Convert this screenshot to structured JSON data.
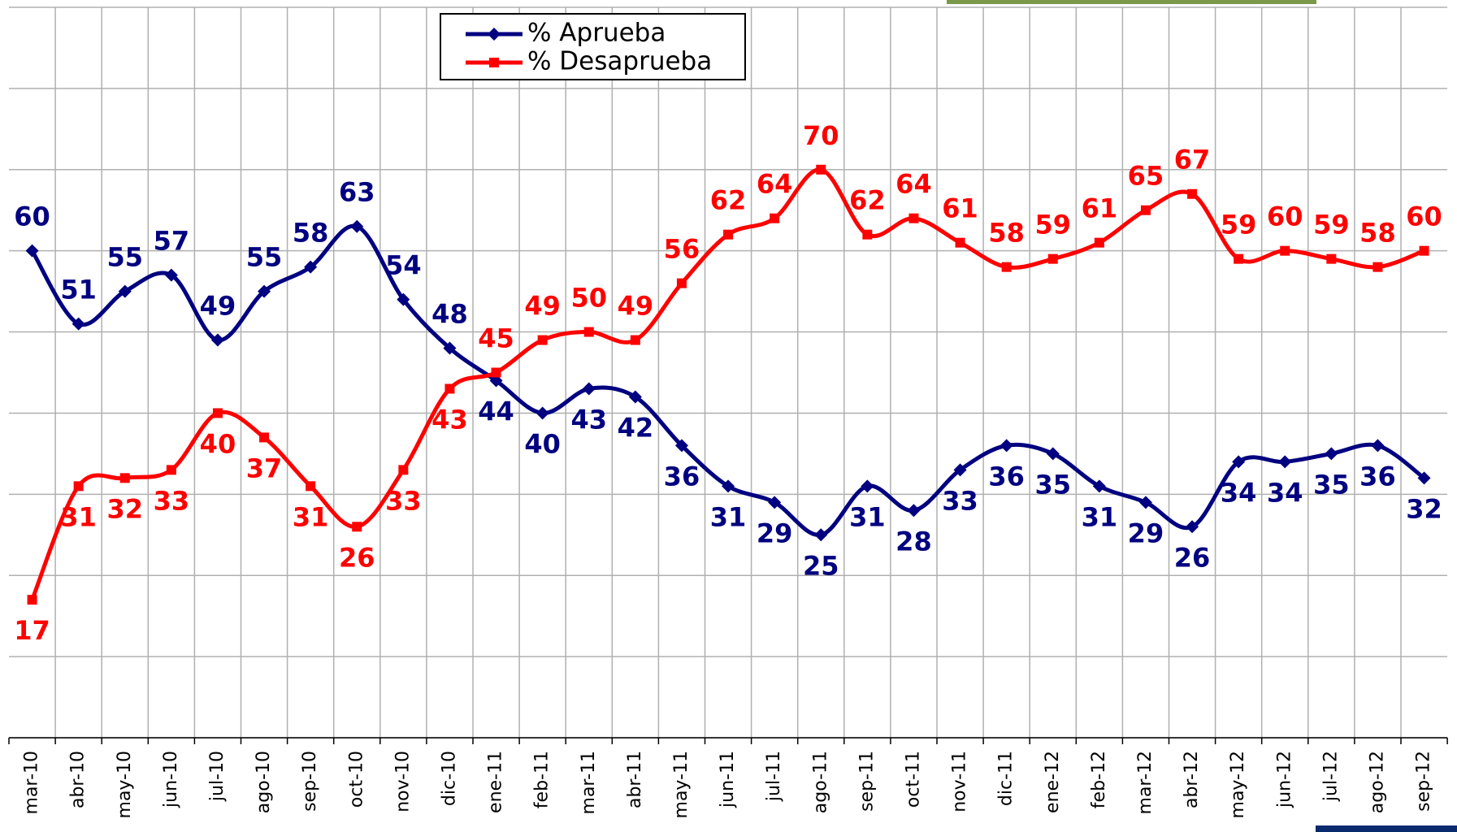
{
  "chart_data": {
    "type": "line",
    "categories": [
      "mar-10",
      "abr-10",
      "may-10",
      "jun-10",
      "jul-10",
      "ago-10",
      "sep-10",
      "oct-10",
      "nov-10",
      "dic-10",
      "ene-11",
      "feb-11",
      "mar-11",
      "abr-11",
      "may-11",
      "jun-11",
      "jul-11",
      "ago-11",
      "sep-11",
      "oct-11",
      "nov-11",
      "dic-11",
      "ene-12",
      "feb-12",
      "mar-12",
      "abr-12",
      "may-12",
      "jun-12",
      "jul-12",
      "ago-12",
      "sep-12"
    ],
    "series": [
      {
        "name": "% Aprueba",
        "color": "#000080",
        "marker": "diamond",
        "values": [
          60,
          51,
          55,
          57,
          49,
          55,
          58,
          63,
          54,
          48,
          44,
          40,
          43,
          42,
          36,
          31,
          29,
          25,
          31,
          28,
          33,
          36,
          35,
          31,
          29,
          26,
          34,
          34,
          35,
          36,
          32
        ]
      },
      {
        "name": "% Desaprueba",
        "color": "#ff0000",
        "marker": "square",
        "values": [
          17,
          31,
          32,
          33,
          40,
          37,
          31,
          26,
          33,
          43,
          45,
          49,
          50,
          49,
          56,
          62,
          64,
          70,
          62,
          64,
          61,
          58,
          59,
          61,
          65,
          67,
          59,
          60,
          59,
          58,
          60
        ]
      }
    ],
    "ylim": [
      0,
      90
    ],
    "yticks": [
      0,
      10,
      20,
      30,
      40,
      50,
      60,
      70,
      80,
      90
    ],
    "grid": true
  }
}
